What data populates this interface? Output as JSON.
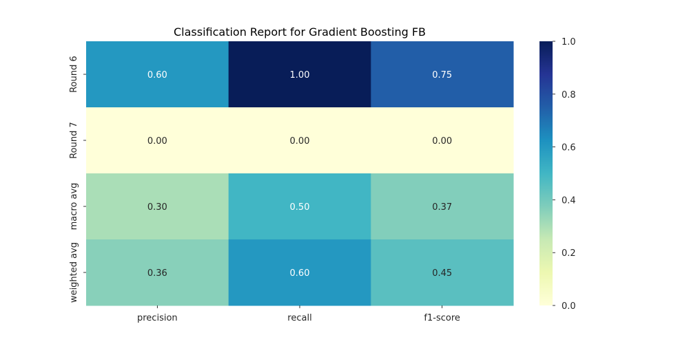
{
  "chart_data": {
    "type": "heatmap",
    "title": "Classification Report for Gradient Boosting FB",
    "xlabel": "",
    "ylabel": "",
    "columns": [
      "precision",
      "recall",
      "f1-score"
    ],
    "rows": [
      "Round 6",
      "Round 7",
      "macro avg",
      "weighted avg"
    ],
    "values": [
      [
        0.6,
        1.0,
        0.75
      ],
      [
        0.0,
        0.0,
        0.0
      ],
      [
        0.3,
        0.5,
        0.37
      ],
      [
        0.36,
        0.6,
        0.45
      ]
    ],
    "annotations": [
      [
        "0.60",
        "1.00",
        "0.75"
      ],
      [
        "0.00",
        "0.00",
        "0.00"
      ],
      [
        "0.30",
        "0.50",
        "0.37"
      ],
      [
        "0.36",
        "0.60",
        "0.45"
      ]
    ],
    "colormap": "YlGnBu",
    "vmin": 0.0,
    "vmax": 1.0,
    "colorbar_ticks": [
      "0.0",
      "0.2",
      "0.4",
      "0.6",
      "0.8",
      "1.0"
    ],
    "grid": false,
    "colorbar_position": "right"
  }
}
